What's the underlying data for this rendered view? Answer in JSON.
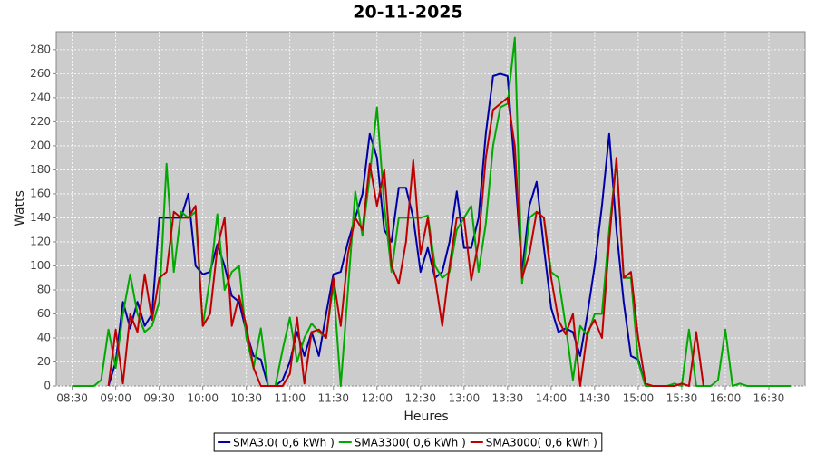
{
  "chart_data": {
    "type": "line",
    "title": "20-11-2025",
    "x_label": "Heures",
    "y_label": "Watts",
    "x": [
      "08:30",
      "08:35",
      "08:40",
      "08:45",
      "08:50",
      "08:55",
      "09:00",
      "09:05",
      "09:10",
      "09:15",
      "09:20",
      "09:25",
      "09:30",
      "09:35",
      "09:40",
      "09:45",
      "09:50",
      "09:55",
      "10:00",
      "10:05",
      "10:10",
      "10:15",
      "10:20",
      "10:25",
      "10:30",
      "10:35",
      "10:40",
      "10:45",
      "10:50",
      "10:55",
      "11:00",
      "11:05",
      "11:10",
      "11:15",
      "11:20",
      "11:25",
      "11:30",
      "11:35",
      "11:40",
      "11:45",
      "11:50",
      "11:55",
      "12:00",
      "12:05",
      "12:10",
      "12:15",
      "12:20",
      "12:25",
      "12:30",
      "12:35",
      "12:40",
      "12:45",
      "12:50",
      "12:55",
      "13:00",
      "13:05",
      "13:10",
      "13:15",
      "13:20",
      "13:25",
      "13:30",
      "13:35",
      "13:40",
      "13:45",
      "13:50",
      "13:55",
      "14:00",
      "14:05",
      "14:10",
      "14:15",
      "14:20",
      "14:25",
      "14:30",
      "14:35",
      "14:40",
      "14:45",
      "14:50",
      "14:55",
      "15:00",
      "15:05",
      "15:10",
      "15:15",
      "15:20",
      "15:25",
      "15:30",
      "15:35",
      "15:40",
      "15:45",
      "15:50",
      "15:55",
      "16:00",
      "16:05",
      "16:10",
      "16:15",
      "16:20",
      "16:25",
      "16:30",
      "16:35",
      "16:40",
      "16:45"
    ],
    "series": [
      {
        "name": "SMA3.0( 0,6 kWh )",
        "color": "#0000a8",
        "values": [
          null,
          null,
          null,
          null,
          null,
          0,
          20,
          70,
          48,
          70,
          50,
          60,
          140,
          140,
          140,
          140,
          160,
          100,
          93,
          95,
          118,
          100,
          75,
          70,
          45,
          25,
          22,
          0,
          0,
          5,
          20,
          45,
          25,
          45,
          25,
          60,
          93,
          95,
          120,
          140,
          160,
          210,
          190,
          130,
          120,
          165,
          165,
          140,
          95,
          115,
          90,
          95,
          120,
          162,
          115,
          115,
          140,
          210,
          258,
          260,
          258,
          180,
          95,
          150,
          170,
          115,
          65,
          45,
          48,
          45,
          25,
          60,
          100,
          150,
          210,
          130,
          70,
          25,
          22,
          0,
          null,
          null,
          null,
          null,
          null,
          null,
          null,
          null,
          null,
          null,
          null,
          null,
          null,
          null,
          null,
          null,
          null,
          null,
          null,
          null
        ]
      },
      {
        "name": "SMA3300( 0,6 kWh )",
        "color": "#00a800",
        "values": [
          0,
          0,
          0,
          0,
          5,
          47,
          15,
          60,
          93,
          60,
          45,
          50,
          70,
          185,
          95,
          145,
          140,
          145,
          50,
          90,
          143,
          80,
          95,
          100,
          40,
          15,
          48,
          0,
          0,
          30,
          57,
          20,
          40,
          52,
          45,
          40,
          85,
          0,
          80,
          162,
          125,
          175,
          232,
          150,
          95,
          140,
          140,
          140,
          140,
          142,
          100,
          90,
          95,
          130,
          140,
          150,
          95,
          135,
          200,
          232,
          235,
          290,
          85,
          140,
          145,
          140,
          95,
          90,
          50,
          5,
          50,
          42,
          60,
          60,
          130,
          188,
          90,
          90,
          20,
          0,
          0,
          0,
          0,
          2,
          0,
          47,
          0,
          0,
          0,
          5,
          47,
          0,
          2,
          0,
          0,
          0,
          0,
          0,
          0,
          0
        ]
      },
      {
        "name": "SMA3000( 0,6 kWh )",
        "color": "#c00000",
        "values": [
          null,
          null,
          null,
          null,
          null,
          0,
          47,
          2,
          60,
          45,
          93,
          55,
          90,
          95,
          145,
          140,
          140,
          150,
          50,
          60,
          115,
          140,
          50,
          75,
          50,
          15,
          0,
          0,
          0,
          0,
          10,
          57,
          2,
          45,
          47,
          40,
          90,
          50,
          110,
          140,
          130,
          185,
          150,
          180,
          100,
          85,
          120,
          188,
          110,
          140,
          90,
          50,
          100,
          140,
          140,
          88,
          120,
          190,
          230,
          235,
          240,
          200,
          90,
          110,
          145,
          140,
          90,
          55,
          43,
          60,
          0,
          45,
          55,
          40,
          120,
          190,
          90,
          95,
          40,
          2,
          0,
          0,
          0,
          0,
          2,
          0,
          45,
          0,
          null,
          null,
          null,
          null,
          null,
          null,
          null,
          null,
          null,
          null,
          null,
          null
        ]
      }
    ],
    "xlim": [
      "08:19",
      "16:55"
    ],
    "xticks": [
      "08:30",
      "09:00",
      "09:30",
      "10:00",
      "10:30",
      "11:00",
      "11:30",
      "12:00",
      "12:30",
      "13:00",
      "13:30",
      "14:00",
      "14:30",
      "15:00",
      "15:30",
      "16:00",
      "16:30"
    ],
    "ylim": [
      0,
      295
    ],
    "yticks": [
      0,
      20,
      40,
      60,
      80,
      100,
      120,
      140,
      160,
      180,
      200,
      220,
      240,
      260,
      280
    ],
    "grid": true,
    "legend": "bottom",
    "background": "#cccccc"
  }
}
